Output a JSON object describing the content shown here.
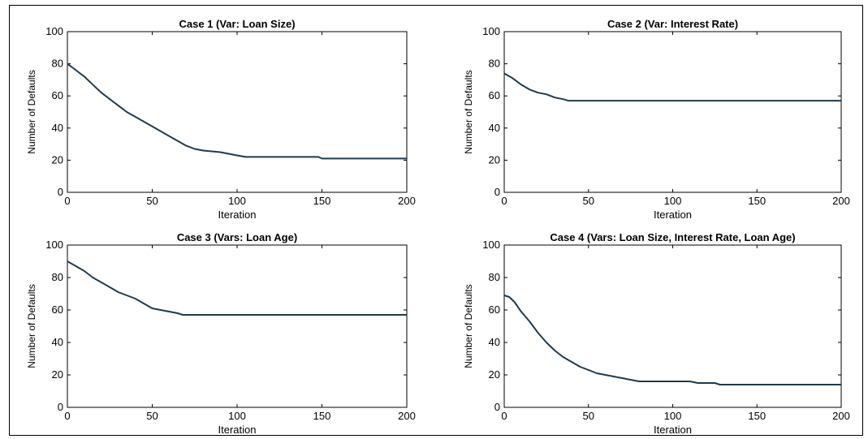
{
  "chart_data": [
    {
      "type": "line",
      "title": "Case 1 (Var: Loan Size)",
      "xlabel": "Iteration",
      "ylabel": "Number of Defaults",
      "xlim": [
        0,
        200
      ],
      "ylim": [
        0,
        100
      ],
      "xticks": [
        "0",
        "50",
        "100",
        "150",
        "200"
      ],
      "yticks": [
        "0",
        "20",
        "40",
        "60",
        "80",
        "100"
      ],
      "grid": false,
      "series": [
        {
          "color": "#1f3a4f",
          "x": [
            0,
            5,
            10,
            15,
            20,
            25,
            30,
            35,
            40,
            45,
            50,
            55,
            60,
            65,
            70,
            75,
            80,
            90,
            100,
            105,
            110,
            120,
            130,
            140,
            148,
            150,
            160,
            170,
            180,
            190,
            200
          ],
          "y": [
            80,
            76,
            72,
            67,
            62,
            58,
            54,
            50,
            47,
            44,
            41,
            38,
            35,
            32,
            29,
            27,
            26,
            25,
            23,
            22,
            22,
            22,
            22,
            22,
            22,
            21,
            21,
            21,
            21,
            21,
            21
          ]
        }
      ]
    },
    {
      "type": "line",
      "title": "Case 2 (Var: Interest Rate)",
      "xlabel": "Iteration",
      "ylabel": "Number of Defaults",
      "xlim": [
        0,
        200
      ],
      "ylim": [
        0,
        100
      ],
      "xticks": [
        "0",
        "50",
        "100",
        "150",
        "200"
      ],
      "yticks": [
        "0",
        "20",
        "40",
        "60",
        "80",
        "100"
      ],
      "grid": false,
      "series": [
        {
          "color": "#1f3a4f",
          "x": [
            0,
            5,
            10,
            15,
            20,
            25,
            30,
            35,
            38,
            40,
            50,
            100,
            150,
            200
          ],
          "y": [
            74,
            71,
            67,
            64,
            62,
            61,
            59,
            58,
            57,
            57,
            57,
            57,
            57,
            57
          ]
        }
      ]
    },
    {
      "type": "line",
      "title": "Case 3 (Vars: Loan Age)",
      "xlabel": "Iteration",
      "ylabel": "Number of Defaults",
      "xlim": [
        0,
        200
      ],
      "ylim": [
        0,
        100
      ],
      "xticks": [
        "0",
        "50",
        "100",
        "150",
        "200"
      ],
      "yticks": [
        "0",
        "20",
        "40",
        "60",
        "80",
        "100"
      ],
      "grid": false,
      "series": [
        {
          "color": "#1f3a4f",
          "x": [
            0,
            5,
            10,
            15,
            20,
            25,
            30,
            35,
            40,
            45,
            50,
            55,
            60,
            65,
            68,
            70,
            100,
            150,
            200
          ],
          "y": [
            90,
            87,
            84,
            80,
            77,
            74,
            71,
            69,
            67,
            64,
            61,
            60,
            59,
            58,
            57,
            57,
            57,
            57,
            57
          ]
        }
      ]
    },
    {
      "type": "line",
      "title": "Case 4 (Vars: Loan Size, Interest Rate, Loan Age)",
      "xlabel": "Iteration",
      "ylabel": "Number of Defaults",
      "xlim": [
        0,
        200
      ],
      "ylim": [
        0,
        100
      ],
      "xticks": [
        "0",
        "50",
        "100",
        "150",
        "200"
      ],
      "yticks": [
        "0",
        "20",
        "40",
        "60",
        "80",
        "100"
      ],
      "grid": false,
      "series": [
        {
          "color": "#1f3a4f",
          "x": [
            0,
            3,
            6,
            10,
            15,
            20,
            25,
            30,
            35,
            40,
            45,
            50,
            55,
            60,
            65,
            70,
            75,
            80,
            90,
            100,
            110,
            115,
            120,
            125,
            128,
            140,
            160,
            180,
            200
          ],
          "y": [
            69,
            68,
            65,
            59,
            53,
            46,
            40,
            35,
            31,
            28,
            25,
            23,
            21,
            20,
            19,
            18,
            17,
            16,
            16,
            16,
            16,
            15,
            15,
            15,
            14,
            14,
            14,
            14,
            14
          ]
        }
      ]
    }
  ]
}
